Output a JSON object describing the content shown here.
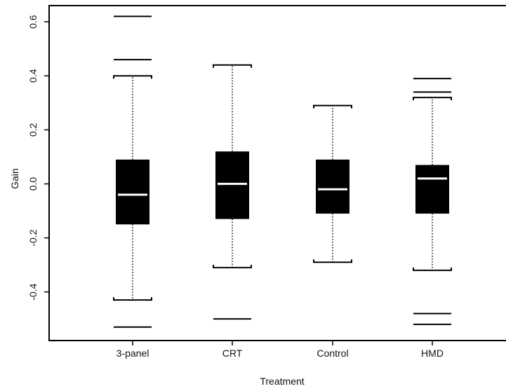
{
  "chart_data": {
    "type": "box",
    "xlabel": "Treatment",
    "ylabel": "Gain",
    "ylim": [
      -0.58,
      0.66
    ],
    "yticks": [
      -0.4,
      -0.2,
      0.0,
      0.2,
      0.4,
      0.6
    ],
    "ytick_labels": [
      "-0.4",
      "-0.2",
      "0.0",
      "0.2",
      "0.4",
      "0.6"
    ],
    "categories": [
      "3-panel",
      "CRT",
      "Control",
      "HMD"
    ],
    "boxes": [
      {
        "name": "3-panel",
        "q1": -0.15,
        "median": -0.04,
        "q3": 0.09,
        "whisker_low": -0.43,
        "whisker_high": 0.4,
        "outliers": [
          -0.53,
          0.46,
          0.62
        ]
      },
      {
        "name": "CRT",
        "q1": -0.13,
        "median": 0.0,
        "q3": 0.12,
        "whisker_low": -0.31,
        "whisker_high": 0.44,
        "outliers": [
          -0.5
        ]
      },
      {
        "name": "Control",
        "q1": -0.11,
        "median": -0.02,
        "q3": 0.09,
        "whisker_low": -0.29,
        "whisker_high": 0.29,
        "outliers": []
      },
      {
        "name": "HMD",
        "q1": -0.11,
        "median": 0.02,
        "q3": 0.07,
        "whisker_low": -0.32,
        "whisker_high": 0.32,
        "outliers": [
          -0.52,
          -0.48,
          0.34,
          0.39
        ]
      }
    ],
    "colors": {
      "box": "#000000",
      "median": "#ffffff",
      "axis": "#000000"
    }
  }
}
